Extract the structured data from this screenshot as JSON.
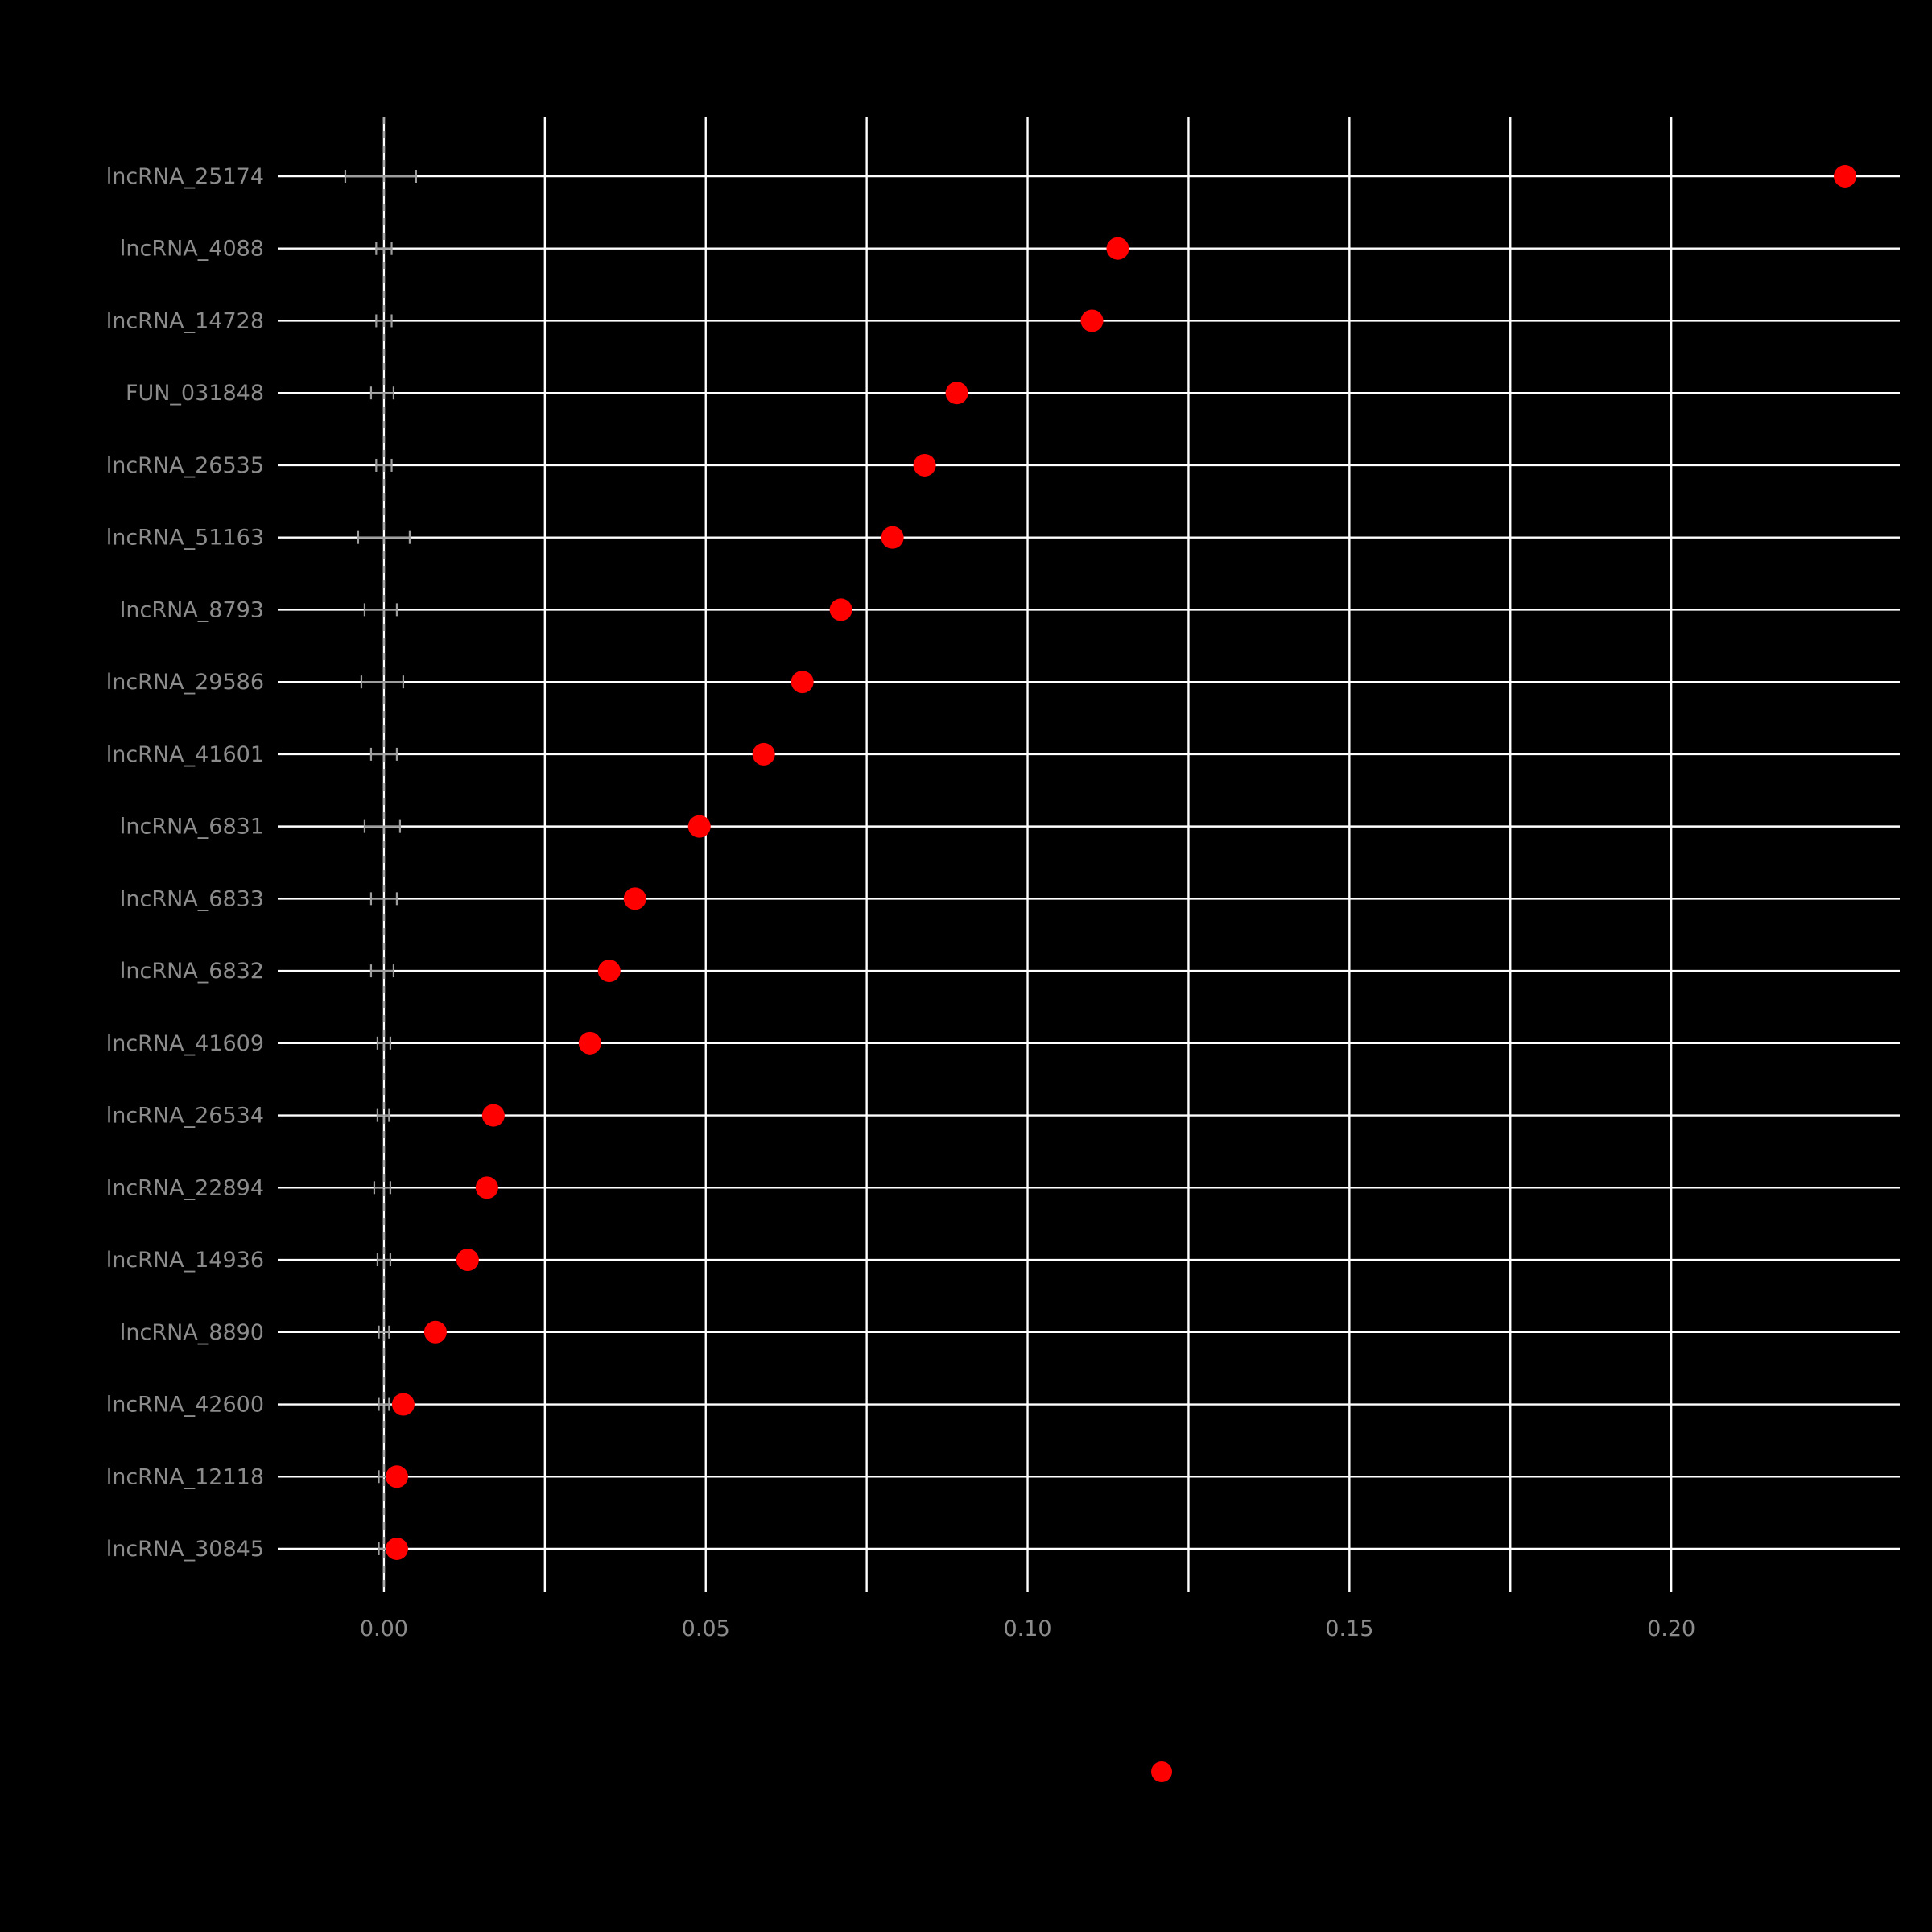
{
  "page": {
    "background_color": "#000000"
  },
  "chart_data": {
    "type": "scatter",
    "subtype": "horizontal-dot-plot",
    "title": "",
    "xlabel": "",
    "ylabel": "",
    "categories": [
      "lncRNA_25174",
      "lncRNA_4088",
      "lncRNA_14728",
      "FUN_031848",
      "lncRNA_26535",
      "lncRNA_51163",
      "lncRNA_8793",
      "lncRNA_29586",
      "lncRNA_41601",
      "lncRNA_6831",
      "lncRNA_6833",
      "lncRNA_6832",
      "lncRNA_41609",
      "lncRNA_26534",
      "lncRNA_22894",
      "lncRNA_14936",
      "lncRNA_8890",
      "lncRNA_42600",
      "lncRNA_12118",
      "lncRNA_30845"
    ],
    "values": [
      0.227,
      0.114,
      0.11,
      0.089,
      0.084,
      0.079,
      0.071,
      0.065,
      0.059,
      0.049,
      0.039,
      0.035,
      0.032,
      0.017,
      0.016,
      0.013,
      0.008,
      0.003,
      0.002,
      0.002
    ],
    "null_ranges": [
      [
        -0.006,
        0.005
      ],
      [
        -0.0012,
        0.0012
      ],
      [
        -0.0012,
        0.0012
      ],
      [
        -0.002,
        0.0015
      ],
      [
        -0.0012,
        0.0012
      ],
      [
        -0.004,
        0.004
      ],
      [
        -0.003,
        0.002
      ],
      [
        -0.0035,
        0.003
      ],
      [
        -0.002,
        0.002
      ],
      [
        -0.003,
        0.0025
      ],
      [
        -0.002,
        0.002
      ],
      [
        -0.002,
        0.0015
      ],
      [
        -0.001,
        0.001
      ],
      [
        -0.001,
        0.0008
      ],
      [
        -0.0015,
        0.001
      ],
      [
        -0.001,
        0.001
      ],
      [
        -0.0008,
        0.0008
      ],
      [
        -0.0008,
        0.0008
      ],
      [
        -0.0008,
        0.0008
      ],
      [
        -0.0008,
        0.0008
      ]
    ],
    "xticks": [
      0.0,
      0.05,
      0.1,
      0.15,
      0.2
    ],
    "xtick_labels": [
      "0.00",
      "0.05",
      "0.10",
      "0.15",
      "0.20"
    ],
    "xlim": [
      -0.0165,
      0.2355
    ],
    "gridline_step": 0.025,
    "grid": true,
    "zero_line": {
      "x": 0,
      "style": "dashed",
      "color": "#aaaaaa"
    },
    "colors": {
      "dot": "#ff0000",
      "grid": "#ffffff",
      "axis_text": "#8c8c8c",
      "whisker": "#9e9e9e",
      "background": "#000000"
    },
    "legend": {
      "position": "bottom-center",
      "marker_color": "#ff0000",
      "label": ""
    }
  }
}
